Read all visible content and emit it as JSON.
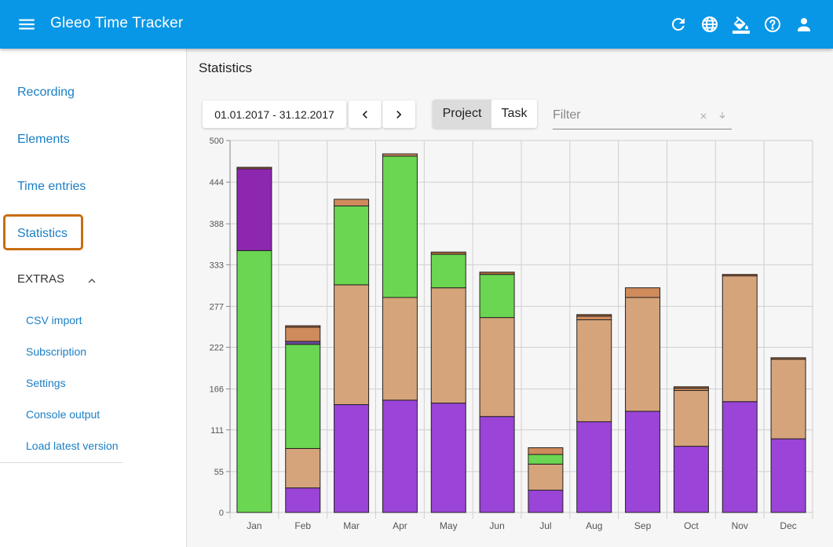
{
  "app": {
    "title": "Gleeo Time Tracker"
  },
  "topbar": {
    "icons": [
      "menu-icon",
      "refresh-icon",
      "globe-icon",
      "paint-bucket-icon",
      "help-icon",
      "account-icon"
    ]
  },
  "sidebar": {
    "items": [
      {
        "label": "Recording"
      },
      {
        "label": "Elements"
      },
      {
        "label": "Time entries"
      },
      {
        "label": "Statistics",
        "active": true
      }
    ],
    "extras_label": "EXTRAS",
    "extras_items": [
      {
        "label": "CSV import"
      },
      {
        "label": "Subscription"
      },
      {
        "label": "Settings"
      },
      {
        "label": "Console output"
      },
      {
        "label": "Load latest version"
      }
    ],
    "active_color": "#c96d10"
  },
  "main": {
    "title": "Statistics",
    "date_range": "01.01.2017 - 31.12.2017",
    "group_toggle": {
      "options": [
        "Project",
        "Task"
      ],
      "selected": "Project"
    },
    "filter": {
      "placeholder": "Filter",
      "value": ""
    }
  },
  "chart_data": {
    "type": "bar",
    "stacked": true,
    "categories": [
      "Jan",
      "Feb",
      "Mar",
      "Apr",
      "May",
      "Jun",
      "Jul",
      "Aug",
      "Sep",
      "Oct",
      "Nov",
      "Dec"
    ],
    "yticks": [
      "0",
      "55",
      "111",
      "166",
      "222",
      "277",
      "333",
      "388",
      "444",
      "500"
    ],
    "ylim": [
      0,
      500
    ],
    "grid": true,
    "colors": [
      "#9b44d8",
      "#d6a47b",
      "#6bd651",
      "#8e27b0",
      "#cf8b5c",
      "#6b4c9a",
      "#b36b3b"
    ],
    "bars": [
      {
        "category": "Jan",
        "segments": [
          {
            "value": 352,
            "color": "#6bd651"
          },
          {
            "value": 110,
            "color": "#8e27b0"
          },
          {
            "value": 2,
            "color": "#b36b3b"
          }
        ]
      },
      {
        "category": "Feb",
        "segments": [
          {
            "value": 33,
            "color": "#9b44d8"
          },
          {
            "value": 53,
            "color": "#d6a47b"
          },
          {
            "value": 140,
            "color": "#6bd651"
          },
          {
            "value": 4,
            "color": "#6b4c9a"
          },
          {
            "value": 19,
            "color": "#cf8b5c"
          },
          {
            "value": 2,
            "color": "#b36b3b"
          }
        ]
      },
      {
        "category": "Mar",
        "segments": [
          {
            "value": 145,
            "color": "#9b44d8"
          },
          {
            "value": 161,
            "color": "#d6a47b"
          },
          {
            "value": 106,
            "color": "#6bd651"
          },
          {
            "value": 9,
            "color": "#cf8b5c"
          }
        ]
      },
      {
        "category": "Apr",
        "segments": [
          {
            "value": 151,
            "color": "#9b44d8"
          },
          {
            "value": 138,
            "color": "#d6a47b"
          },
          {
            "value": 190,
            "color": "#6bd651"
          },
          {
            "value": 3,
            "color": "#cf8b5c"
          }
        ]
      },
      {
        "category": "May",
        "segments": [
          {
            "value": 147,
            "color": "#9b44d8"
          },
          {
            "value": 155,
            "color": "#d6a47b"
          },
          {
            "value": 45,
            "color": "#6bd651"
          },
          {
            "value": 3,
            "color": "#b36b3b"
          }
        ]
      },
      {
        "category": "Jun",
        "segments": [
          {
            "value": 129,
            "color": "#9b44d8"
          },
          {
            "value": 133,
            "color": "#d6a47b"
          },
          {
            "value": 58,
            "color": "#6bd651"
          },
          {
            "value": 3,
            "color": "#b36b3b"
          }
        ]
      },
      {
        "category": "Jul",
        "segments": [
          {
            "value": 30,
            "color": "#9b44d8"
          },
          {
            "value": 35,
            "color": "#d6a47b"
          },
          {
            "value": 13,
            "color": "#6bd651"
          },
          {
            "value": 9,
            "color": "#cf8b5c"
          }
        ]
      },
      {
        "category": "Aug",
        "segments": [
          {
            "value": 122,
            "color": "#9b44d8"
          },
          {
            "value": 137,
            "color": "#d6a47b"
          },
          {
            "value": 5,
            "color": "#cf8b5c"
          },
          {
            "value": 2,
            "color": "#b36b3b"
          }
        ]
      },
      {
        "category": "Sep",
        "segments": [
          {
            "value": 136,
            "color": "#9b44d8"
          },
          {
            "value": 153,
            "color": "#d6a47b"
          },
          {
            "value": 13,
            "color": "#cf8b5c"
          }
        ]
      },
      {
        "category": "Oct",
        "segments": [
          {
            "value": 89,
            "color": "#9b44d8"
          },
          {
            "value": 75,
            "color": "#d6a47b"
          },
          {
            "value": 3,
            "color": "#cf8b5c"
          },
          {
            "value": 2,
            "color": "#b36b3b"
          }
        ]
      },
      {
        "category": "Nov",
        "segments": [
          {
            "value": 149,
            "color": "#9b44d8"
          },
          {
            "value": 169,
            "color": "#d6a47b"
          },
          {
            "value": 2,
            "color": "#b36b3b"
          }
        ]
      },
      {
        "category": "Dec",
        "segments": [
          {
            "value": 99,
            "color": "#9b44d8"
          },
          {
            "value": 107,
            "color": "#d6a47b"
          },
          {
            "value": 2,
            "color": "#b36b3b"
          }
        ]
      }
    ]
  }
}
